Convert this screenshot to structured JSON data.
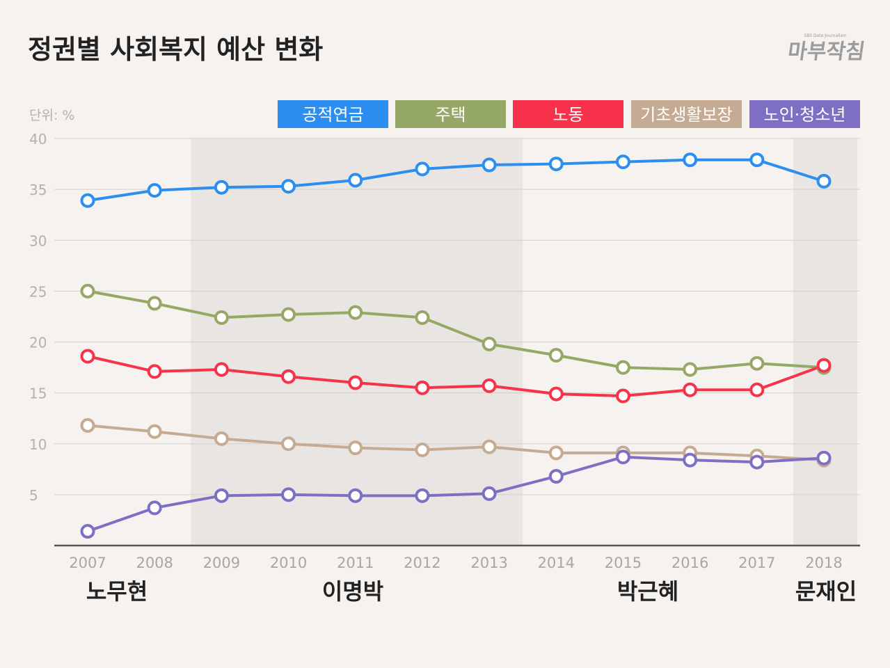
{
  "chart_data": {
    "type": "line",
    "title": "정권별 사회복지 예산 변화",
    "unit_label": "단위: %",
    "logo": {
      "small": "SBS Data Journalism",
      "main": "마부작침"
    },
    "x": [
      "2007",
      "2008",
      "2009",
      "2010",
      "2011",
      "2012",
      "2013",
      "2014",
      "2015",
      "2016",
      "2017",
      "2018"
    ],
    "ylim": [
      0,
      40
    ],
    "yticks": [
      5,
      10,
      15,
      20,
      25,
      30,
      35,
      40
    ],
    "grid": true,
    "legend_position": "top",
    "series": [
      {
        "name": "공적연금",
        "color": "#2b8ef0",
        "values": [
          33.9,
          34.9,
          35.2,
          35.3,
          35.9,
          37.0,
          37.4,
          37.5,
          37.7,
          37.9,
          37.9,
          35.8
        ]
      },
      {
        "name": "주택",
        "color": "#96a865",
        "values": [
          25.0,
          23.8,
          22.4,
          22.7,
          22.9,
          22.4,
          19.8,
          18.7,
          17.5,
          17.3,
          17.9,
          17.5
        ]
      },
      {
        "name": "노동",
        "color": "#f7324a",
        "values": [
          18.6,
          17.1,
          17.3,
          16.6,
          16.0,
          15.5,
          15.7,
          14.9,
          14.7,
          15.3,
          15.3,
          17.7
        ]
      },
      {
        "name": "기초생활보장",
        "color": "#c6ab94",
        "values": [
          11.8,
          11.2,
          10.5,
          10.0,
          9.6,
          9.4,
          9.7,
          9.1,
          9.1,
          9.1,
          8.8,
          8.4
        ]
      },
      {
        "name": "노인·청소년",
        "color": "#7f6fc4",
        "values": [
          1.4,
          3.7,
          4.9,
          5.0,
          4.9,
          4.9,
          5.1,
          6.8,
          8.7,
          8.4,
          8.2,
          8.6
        ]
      }
    ],
    "eras": [
      {
        "name": "노무현",
        "years": [
          "2007",
          "2008"
        ],
        "shaded": false
      },
      {
        "name": "이명박",
        "years": [
          "2009",
          "2013"
        ],
        "shaded": true
      },
      {
        "name": "박근혜",
        "years": [
          "2014",
          "2017"
        ],
        "shaded": false
      },
      {
        "name": "문재인",
        "years": [
          "2018",
          "2018"
        ],
        "shaded": true
      }
    ]
  }
}
